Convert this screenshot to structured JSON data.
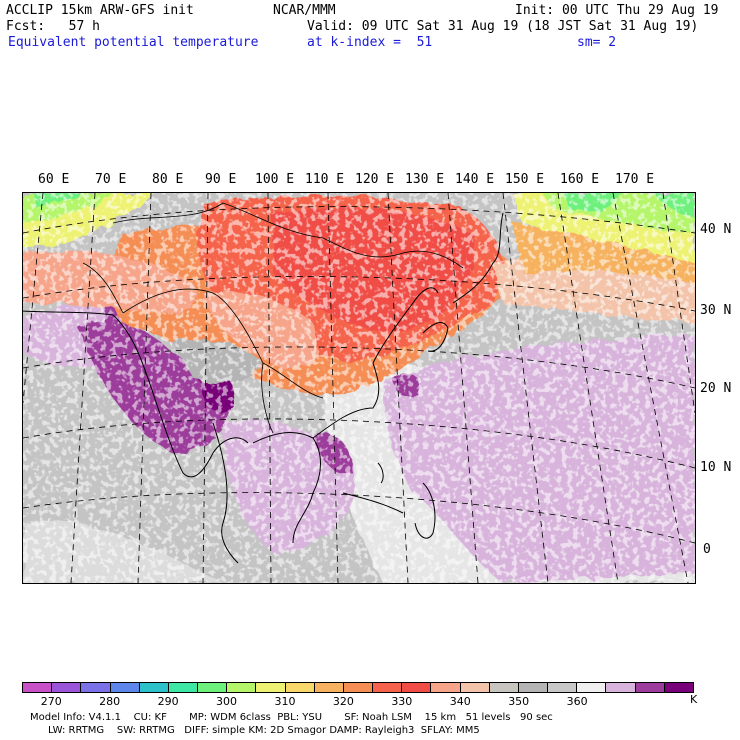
{
  "header": {
    "model_title": "ACCLIP 15km ARW-GFS init",
    "forecast": "Fcst:   57 h",
    "field_name": "Equivalent potential temperature",
    "center": "NCAR/MMM",
    "init": "Init: 00 UTC Thu 29 Aug 19",
    "valid": "Valid: 09 UTC Sat 31 Aug 19 (18 JST Sat 31 Aug 19)",
    "level": "at k-index =  51",
    "smoothing": "sm= 2"
  },
  "map": {
    "lon_labels": [
      "60 E",
      "70 E",
      "80 E",
      "90 E",
      "100 E",
      "110 E",
      "120 E",
      "130 E",
      "140 E",
      "150 E",
      "160 E",
      "170 E"
    ],
    "lat_labels": [
      "40 N",
      "30 N",
      "20 N",
      "10 N",
      "0"
    ]
  },
  "colorbar": {
    "colors": [
      "#c851c8",
      "#9a55d8",
      "#7a72e6",
      "#5f86ea",
      "#2dc2c9",
      "#3ee7a3",
      "#6ef07c",
      "#b4f56a",
      "#eef272",
      "#f8d86a",
      "#f6b25f",
      "#f58e55",
      "#f5634c",
      "#f04d46",
      "#f6a48a",
      "#f3c4aa",
      "#c8c4c0",
      "#b4b4b4",
      "#c8c8c8",
      "#f0f0f0",
      "#d8b4dc",
      "#9c3c9c",
      "#780078"
    ],
    "tick_labels": [
      "270",
      "280",
      "290",
      "300",
      "310",
      "320",
      "330",
      "340",
      "350",
      "360"
    ],
    "unit": "K"
  },
  "footer": {
    "line1": "Model Info: V4.1.1    CU: KF       MP: WDM 6class  PBL: YSU       SF: Noah LSM    15 km   51 levels   90 sec",
    "line2": "LW: RRTMG    SW: RRTMG   DIFF: simple KM: 2D Smagor DAMP: Rayleigh3  SFLAY: MM5"
  }
}
